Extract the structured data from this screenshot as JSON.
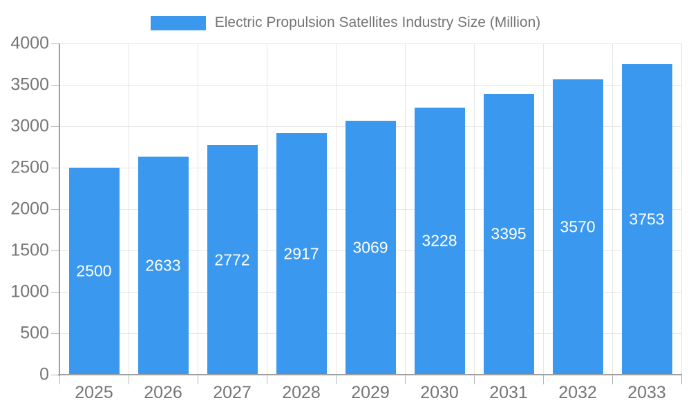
{
  "colors": {
    "bar": "#3a99ee",
    "grid": "#e6e6e6",
    "axis": "#a0a0a0",
    "tick": "#b5b5b5",
    "text": "#757575",
    "value_label": "#ffffff",
    "background": "#ffffff"
  },
  "chart_data": {
    "type": "bar",
    "title": "Electric Propulsion Satellites Industry Size (Million)",
    "legend": {
      "position": "top",
      "entries": [
        {
          "label": "Electric Propulsion Satellites Industry Size (Million)",
          "color": "#3a99ee"
        }
      ]
    },
    "categories": [
      "2025",
      "2026",
      "2027",
      "2028",
      "2029",
      "2030",
      "2031",
      "2032",
      "2033"
    ],
    "values": [
      2500,
      2633,
      2772,
      2917,
      3069,
      3228,
      3395,
      3570,
      3753
    ],
    "value_labels_position": "inside-center",
    "xlabel": "",
    "ylabel": "",
    "ylim": [
      0,
      4000
    ],
    "ytick_step": 500,
    "yticks": [
      0,
      500,
      1000,
      1500,
      2000,
      2500,
      3000,
      3500,
      4000
    ],
    "grid": true
  }
}
